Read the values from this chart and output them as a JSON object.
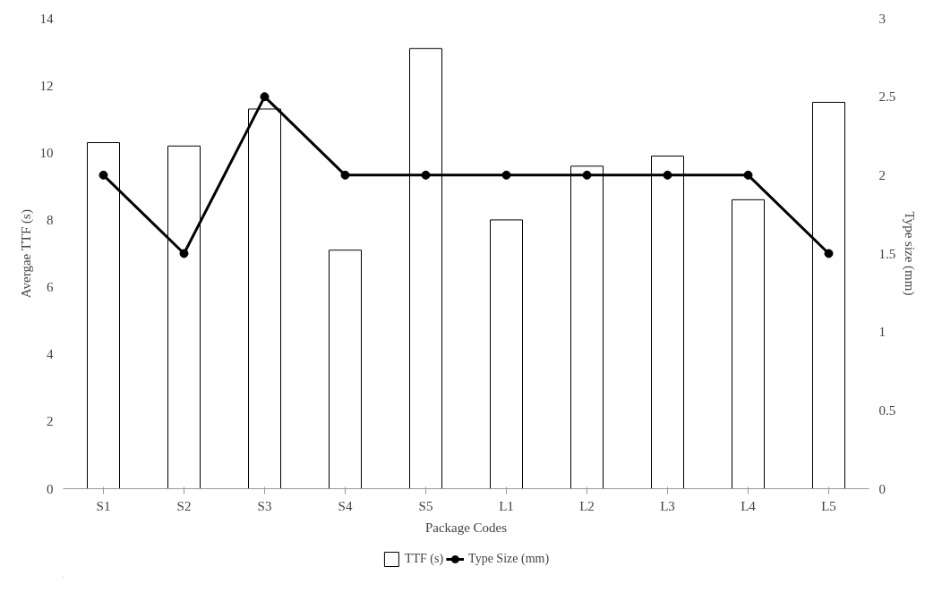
{
  "chart_data": {
    "type": "bar",
    "xlabel": "Package Codes",
    "ylabel": "Avergae TTF (s)",
    "y2label": "Type size (mm)",
    "categories": [
      "S1",
      "S2",
      "S3",
      "S4",
      "S5",
      "L1",
      "L2",
      "L3",
      "L4",
      "L5"
    ],
    "series": [
      {
        "name": "TTF (s)",
        "color": "#ffffff",
        "values": [
          10.3,
          10.2,
          11.3,
          7.1,
          13.1,
          8.0,
          9.6,
          9.9,
          8.6,
          11.5
        ]
      },
      {
        "name": "Type Size (mm)",
        "type": "line",
        "color": "#000000",
        "axis": "y2",
        "marker": "circle",
        "values": [
          2,
          1.5,
          2.5,
          2,
          2,
          2,
          2,
          2,
          2,
          1.5
        ]
      }
    ],
    "ylim": [
      0,
      14
    ],
    "yticks": [
      0,
      2,
      4,
      6,
      8,
      10,
      12,
      14
    ],
    "y2lim": [
      0,
      3
    ],
    "y2ticks": [
      0,
      {
        "value": 0.5,
        "label": "0.5"
      },
      1,
      {
        "value": 1.5,
        "label": "1.5"
      },
      2,
      {
        "value": 2.5,
        "label": "2.5"
      },
      3
    ],
    "legend": "bottom"
  }
}
